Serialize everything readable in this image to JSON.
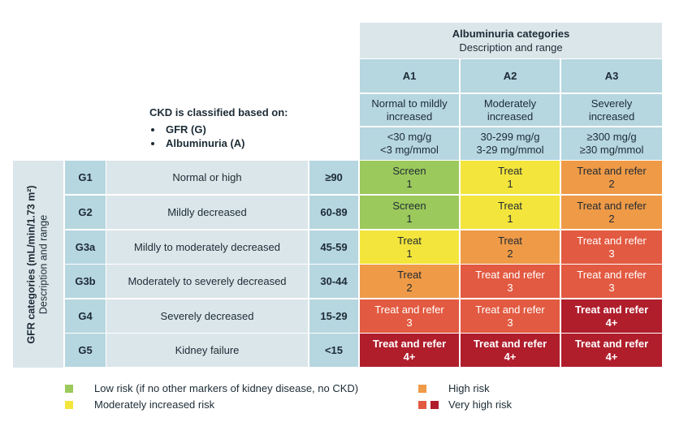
{
  "albuminuria": {
    "title": "Albuminuria categories",
    "subtitle": "Description and range",
    "columns": [
      {
        "code": "A1",
        "desc": "Normal to mildly increased",
        "range1": "<30 mg/g",
        "range2": "<3 mg/mmol"
      },
      {
        "code": "A2",
        "desc": "Moderately increased",
        "range1": "30-299 mg/g",
        "range2": "3-29 mg/mmol"
      },
      {
        "code": "A3",
        "desc": "Severely increased",
        "range1": "≥300 mg/g",
        "range2": "≥30 mg/mmol"
      }
    ]
  },
  "ckd": {
    "title": "CKD is classified based on:",
    "items": [
      "GFR (G)",
      "Albuminuria (A)"
    ]
  },
  "gfr": {
    "label": "GFR categories (mL/min/1.73 m²)",
    "sublabel": "Description and range",
    "rows": [
      {
        "code": "G1",
        "desc": "Normal or high",
        "range": "≥90",
        "cells": [
          {
            "l1": "Screen",
            "l2": "1",
            "risk": "green"
          },
          {
            "l1": "Treat",
            "l2": "1",
            "risk": "yellow"
          },
          {
            "l1": "Treat and refer",
            "l2": "2",
            "risk": "orange"
          }
        ]
      },
      {
        "code": "G2",
        "desc": "Mildly decreased",
        "range": "60-89",
        "cells": [
          {
            "l1": "Screen",
            "l2": "1",
            "risk": "green"
          },
          {
            "l1": "Treat",
            "l2": "1",
            "risk": "yellow"
          },
          {
            "l1": "Treat and refer",
            "l2": "2",
            "risk": "orange"
          }
        ]
      },
      {
        "code": "G3a",
        "desc": "Mildly to moderately decreased",
        "range": "45-59",
        "cells": [
          {
            "l1": "Treat",
            "l2": "1",
            "risk": "yellow"
          },
          {
            "l1": "Treat",
            "l2": "2",
            "risk": "orange"
          },
          {
            "l1": "Treat and refer",
            "l2": "3",
            "risk": "red"
          }
        ]
      },
      {
        "code": "G3b",
        "desc": "Moderately to severely decreased",
        "range": "30-44",
        "cells": [
          {
            "l1": "Treat",
            "l2": "2",
            "risk": "orange"
          },
          {
            "l1": "Treat and refer",
            "l2": "3",
            "risk": "red"
          },
          {
            "l1": "Treat and refer",
            "l2": "3",
            "risk": "red"
          }
        ]
      },
      {
        "code": "G4",
        "desc": "Severely decreased",
        "range": "15-29",
        "cells": [
          {
            "l1": "Treat and refer",
            "l2": "3",
            "risk": "red"
          },
          {
            "l1": "Treat and refer",
            "l2": "3",
            "risk": "red"
          },
          {
            "l1": "Treat and refer",
            "l2": "4+",
            "risk": "dred"
          }
        ]
      },
      {
        "code": "G5",
        "desc": "Kidney failure",
        "range": "<15",
        "cells": [
          {
            "l1": "Treat and refer",
            "l2": "4+",
            "risk": "dred"
          },
          {
            "l1": "Treat and refer",
            "l2": "4+",
            "risk": "dred"
          },
          {
            "l1": "Treat and refer",
            "l2": "4+",
            "risk": "dred"
          }
        ]
      }
    ]
  },
  "legend": {
    "low": "Low risk (if no other markers of kidney disease, no CKD)",
    "moderate": "Moderately increased risk",
    "high": "High risk",
    "very_high": "Very high risk"
  },
  "colors": {
    "green": "#9bc95c",
    "yellow": "#f4e53c",
    "orange": "#ef9a47",
    "red": "#e25a41",
    "dark_red": "#b01e2c",
    "header_dark": "#b6d6e0",
    "header_light": "#dbe6ea"
  }
}
